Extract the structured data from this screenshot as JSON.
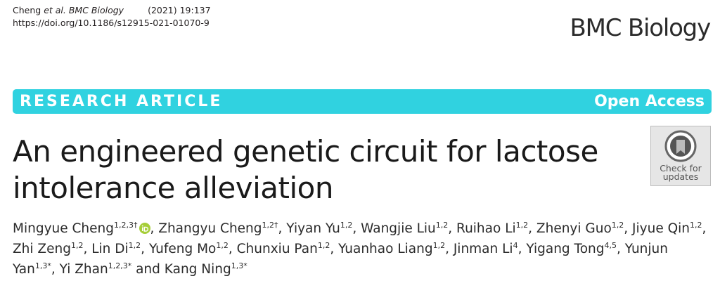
{
  "header": {
    "citation": {
      "author": "Cheng",
      "etal": "et al.",
      "journal": "BMC Biology",
      "issue": "(2021) 19:137"
    },
    "doi": "https://doi.org/10.1186/s12915-021-01070-9",
    "journal_logo": "BMC Biology"
  },
  "banner": {
    "type": "RESEARCH ARTICLE",
    "access": "Open Access"
  },
  "title": "An engineered genetic circuit for lactose intolerance alleviation",
  "badge": {
    "lines": [
      "Check for",
      "updates"
    ]
  },
  "authors": [
    {
      "name": "Mingyue Cheng",
      "sup": "1,2,3†",
      "orcid": true,
      "sep": ", "
    },
    {
      "name": "Zhangyu Cheng",
      "sup": "1,2†",
      "sep": ", "
    },
    {
      "name": "Yiyan Yu",
      "sup": "1,2",
      "sep": ", "
    },
    {
      "name": "Wangjie Liu",
      "sup": "1,2",
      "sep": ", "
    },
    {
      "name": "Ruihao Li",
      "sup": "1,2",
      "sep": ", "
    },
    {
      "name": "Zhenyi Guo",
      "sup": "1,2",
      "sep": ", "
    },
    {
      "name": "Jiyue Qin",
      "sup": "1,2",
      "sep": ", "
    },
    {
      "name": "Zhi Zeng",
      "sup": "1,2",
      "sep": ", "
    },
    {
      "name": "Lin Di",
      "sup": "1,2",
      "sep": ", "
    },
    {
      "name": "Yufeng Mo",
      "sup": "1,2",
      "sep": ", "
    },
    {
      "name": "Chunxiu Pan",
      "sup": "1,2",
      "sep": ", "
    },
    {
      "name": "Yuanhao Liang",
      "sup": "1,2",
      "sep": ", "
    },
    {
      "name": "Jinman Li",
      "sup": "4",
      "sep": ", "
    },
    {
      "name": "Yigang Tong",
      "sup": "4,5",
      "sep": ", "
    },
    {
      "name": "Yunjun Yan",
      "sup": "1,3*",
      "sep": ", "
    },
    {
      "name": "Yi Zhan",
      "sup": "1,2,3*",
      "sep": " and "
    },
    {
      "name": "Kang Ning",
      "sup": "1,3*"
    }
  ]
}
